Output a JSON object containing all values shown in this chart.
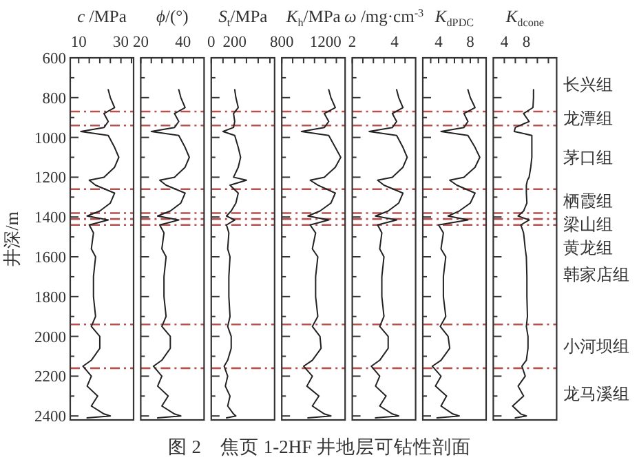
{
  "chart_data": [
    {
      "type": "line",
      "xlabel": "*c* /MPa",
      "ylabel": "井深/m",
      "xlim": [
        6,
        36
      ],
      "xticks": [
        10,
        {
          "value": 15,
          "label": null
        },
        {
          "value": 20,
          "label": null
        },
        {
          "value": 25,
          "label": null
        },
        30,
        {
          "value": 35,
          "label": null
        }
      ],
      "ylim": [
        2420,
        600
      ],
      "yticks": [
        600,
        {
          "value": 700,
          "label": null
        },
        800,
        {
          "value": 900,
          "label": null
        },
        1000,
        {
          "value": 1100,
          "label": null
        },
        1200,
        {
          "value": 1300,
          "label": null
        },
        1400,
        {
          "value": 1500,
          "label": null
        },
        1600,
        {
          "value": 1700,
          "label": null
        },
        1800,
        {
          "value": 1900,
          "label": null
        },
        2000,
        {
          "value": 2100,
          "label": null
        },
        2200,
        {
          "value": 2300,
          "label": null
        },
        2400
      ],
      "series": [
        {
          "color": "#222222",
          "x": [
            24,
            25,
            27,
            22,
            24,
            22,
            11,
            24,
            27,
            29,
            27,
            22,
            15,
            18,
            27,
            25,
            20,
            14,
            24,
            15,
            17,
            16,
            18,
            17,
            17,
            18,
            16,
            20,
            20,
            16,
            12,
            16,
            14,
            19,
            16,
            22,
            25,
            14
          ],
          "values": [
            760,
            800,
            850,
            880,
            920,
            950,
            970,
            990,
            1050,
            1100,
            1150,
            1200,
            1215,
            1240,
            1280,
            1330,
            1370,
            1395,
            1415,
            1440,
            1480,
            1560,
            1600,
            1700,
            1800,
            1900,
            1950,
            2000,
            2060,
            2120,
            2150,
            2200,
            2250,
            2300,
            2350,
            2390,
            2400,
            2410
          ]
        }
      ],
      "ref_lines": [
        {
          "axis": "y",
          "value": 870,
          "color": "#b5524f",
          "line_style": "dashdot"
        },
        {
          "axis": "y",
          "value": 940,
          "color": "#b5524f",
          "line_style": "dashdot"
        },
        {
          "axis": "y",
          "value": 1260,
          "color": "#b5524f",
          "line_style": "dashdot"
        },
        {
          "axis": "y",
          "value": 1380,
          "color": "#b5524f",
          "line_style": "dashdot"
        },
        {
          "axis": "y",
          "value": 1410,
          "color": "#b5524f",
          "line_style": "dashdot"
        },
        {
          "axis": "y",
          "value": 1440,
          "color": "#b5524f",
          "line_style": "dashdot"
        },
        {
          "axis": "y",
          "value": 1940,
          "color": "#b5524f",
          "line_style": "dashdot"
        },
        {
          "axis": "y",
          "value": 2160,
          "color": "#b5524f",
          "line_style": "dashdot"
        }
      ],
      "annotations": [
        "图 2　焦页 1-2HF 井地层可钻性剖面"
      ]
    },
    {
      "type": "line",
      "xlabel": "*ϕ*/(°)",
      "xlim": [
        20,
        50
      ],
      "xticks": [
        20,
        {
          "value": 25,
          "label": null
        },
        {
          "value": 30,
          "label": null
        },
        {
          "value": 35,
          "label": null
        },
        40,
        {
          "value": 45,
          "label": null
        }
      ],
      "ylim": [
        2420,
        600
      ],
      "yticks": [
        600,
        {
          "value": 700,
          "label": null
        },
        800,
        {
          "value": 900,
          "label": null
        },
        1000,
        {
          "value": 1100,
          "label": null
        },
        1200,
        {
          "value": 1300,
          "label": null
        },
        1400,
        {
          "value": 1500,
          "label": null
        },
        1600,
        {
          "value": 1700,
          "label": null
        },
        1800,
        {
          "value": 1900,
          "label": null
        },
        2000,
        {
          "value": 2100,
          "label": null
        },
        2200,
        {
          "value": 2300,
          "label": null
        },
        2400
      ],
      "tick_labels": "x",
      "series": [
        {
          "color": "#222222",
          "x": [
            38,
            39,
            41,
            36,
            38,
            36,
            25,
            38,
            41,
            43,
            41,
            36,
            29,
            32,
            41,
            39,
            34,
            28,
            38,
            29,
            31,
            30,
            32,
            31,
            31,
            32,
            30,
            34,
            34,
            30,
            26,
            30,
            28,
            33,
            30,
            36,
            39,
            28
          ],
          "values": [
            760,
            800,
            850,
            880,
            920,
            950,
            970,
            990,
            1050,
            1100,
            1150,
            1200,
            1215,
            1240,
            1280,
            1330,
            1370,
            1395,
            1415,
            1440,
            1480,
            1560,
            1600,
            1700,
            1800,
            1900,
            1950,
            2000,
            2060,
            2120,
            2150,
            2200,
            2250,
            2300,
            2350,
            2390,
            2400,
            2410
          ]
        }
      ],
      "ref_lines": [
        {
          "axis": "y",
          "value": 870,
          "color": "#b5524f",
          "line_style": "dashdot"
        },
        {
          "axis": "y",
          "value": 940,
          "color": "#b5524f",
          "line_style": "dashdot"
        },
        {
          "axis": "y",
          "value": 1260,
          "color": "#b5524f",
          "line_style": "dashdot"
        },
        {
          "axis": "y",
          "value": 1380,
          "color": "#b5524f",
          "line_style": "dashdot"
        },
        {
          "axis": "y",
          "value": 1410,
          "color": "#b5524f",
          "line_style": "dashdot"
        },
        {
          "axis": "y",
          "value": 1440,
          "color": "#b5524f",
          "line_style": "dashdot"
        },
        {
          "axis": "y",
          "value": 1940,
          "color": "#b5524f",
          "line_style": "dashdot"
        },
        {
          "axis": "y",
          "value": 2160,
          "color": "#b5524f",
          "line_style": "dashdot"
        }
      ]
    },
    {
      "type": "line",
      "xlabel": "*S*$_{t}$/MPa",
      "xlim": [
        0,
        540
      ],
      "xticks": [
        0,
        {
          "value": 100,
          "label": null
        },
        200,
        {
          "value": 300,
          "label": null
        },
        {
          "value": 400,
          "label": null
        },
        {
          "value": 500,
          "label": null
        }
      ],
      "ylim": [
        2420,
        600
      ],
      "yticks": [
        600,
        {
          "value": 700,
          "label": null
        },
        800,
        {
          "value": 900,
          "label": null
        },
        1000,
        {
          "value": 1100,
          "label": null
        },
        1200,
        {
          "value": 1300,
          "label": null
        },
        1400,
        {
          "value": 1500,
          "label": null
        },
        1600,
        {
          "value": 1700,
          "label": null
        },
        1800,
        {
          "value": 1900,
          "label": null
        },
        2000,
        {
          "value": 2100,
          "label": null
        },
        2200,
        {
          "value": 2300,
          "label": null
        },
        2400
      ],
      "tick_labels": "x",
      "series": [
        {
          "color": "#222222",
          "x": [
            200,
            210,
            230,
            190,
            200,
            190,
            100,
            200,
            230,
            250,
            230,
            190,
            300,
            160,
            230,
            210,
            170,
            130,
            200,
            130,
            150,
            140,
            160,
            150,
            150,
            160,
            140,
            170,
            170,
            140,
            110,
            140,
            120,
            160,
            140,
            190,
            210,
            130
          ],
          "values": [
            760,
            800,
            850,
            880,
            920,
            950,
            970,
            990,
            1050,
            1100,
            1150,
            1200,
            1215,
            1240,
            1280,
            1330,
            1370,
            1395,
            1415,
            1440,
            1480,
            1560,
            1600,
            1700,
            1800,
            1900,
            1950,
            2000,
            2060,
            2120,
            2150,
            2200,
            2250,
            2300,
            2350,
            2390,
            2400,
            2410
          ]
        }
      ],
      "ref_lines": [
        {
          "axis": "y",
          "value": 870,
          "color": "#b5524f",
          "line_style": "dashdot"
        },
        {
          "axis": "y",
          "value": 940,
          "color": "#b5524f",
          "line_style": "dashdot"
        },
        {
          "axis": "y",
          "value": 1260,
          "color": "#b5524f",
          "line_style": "dashdot"
        },
        {
          "axis": "y",
          "value": 1380,
          "color": "#b5524f",
          "line_style": "dashdot"
        },
        {
          "axis": "y",
          "value": 1410,
          "color": "#b5524f",
          "line_style": "dashdot"
        },
        {
          "axis": "y",
          "value": 1440,
          "color": "#b5524f",
          "line_style": "dashdot"
        },
        {
          "axis": "y",
          "value": 1940,
          "color": "#b5524f",
          "line_style": "dashdot"
        },
        {
          "axis": "y",
          "value": 2160,
          "color": "#b5524f",
          "line_style": "dashdot"
        }
      ]
    },
    {
      "type": "line",
      "xlabel": "*K*$_{h}$/MPa",
      "xlim": [
        800,
        1380
      ],
      "xticks": [
        800,
        {
          "value": 900,
          "label": null
        },
        {
          "value": 1000,
          "label": null
        },
        {
          "value": 1100,
          "label": null
        },
        1200,
        {
          "value": 1300,
          "label": null
        }
      ],
      "ylim": [
        2420,
        600
      ],
      "yticks": [
        600,
        {
          "value": 700,
          "label": null
        },
        800,
        {
          "value": 900,
          "label": null
        },
        1000,
        {
          "value": 1100,
          "label": null
        },
        1200,
        {
          "value": 1300,
          "label": null
        },
        1400,
        {
          "value": 1500,
          "label": null
        },
        1600,
        {
          "value": 1700,
          "label": null
        },
        1800,
        {
          "value": 1900,
          "label": null
        },
        2000,
        {
          "value": 2100,
          "label": null
        },
        2200,
        {
          "value": 2300,
          "label": null
        },
        2400
      ],
      "tick_labels": "x",
      "series": [
        {
          "color": "#222222",
          "x": [
            1230,
            1250,
            1290,
            1190,
            1230,
            1190,
            980,
            1230,
            1290,
            1340,
            1290,
            1190,
            1060,
            1130,
            1290,
            1250,
            1150,
            1040,
            1230,
            1060,
            1110,
            1080,
            1130,
            1110,
            1110,
            1130,
            1080,
            1150,
            1160,
            1080,
            1000,
            1080,
            1030,
            1140,
            1080,
            1190,
            1250,
            1040
          ],
          "values": [
            760,
            800,
            850,
            880,
            920,
            950,
            970,
            990,
            1050,
            1100,
            1150,
            1200,
            1215,
            1240,
            1280,
            1330,
            1370,
            1395,
            1415,
            1440,
            1480,
            1560,
            1600,
            1700,
            1800,
            1900,
            1950,
            2000,
            2060,
            2120,
            2150,
            2200,
            2250,
            2300,
            2350,
            2390,
            2400,
            2410
          ]
        }
      ],
      "ref_lines": [
        {
          "axis": "y",
          "value": 870,
          "color": "#b5524f",
          "line_style": "dashdot"
        },
        {
          "axis": "y",
          "value": 940,
          "color": "#b5524f",
          "line_style": "dashdot"
        },
        {
          "axis": "y",
          "value": 1260,
          "color": "#b5524f",
          "line_style": "dashdot"
        },
        {
          "axis": "y",
          "value": 1380,
          "color": "#b5524f",
          "line_style": "dashdot"
        },
        {
          "axis": "y",
          "value": 1410,
          "color": "#b5524f",
          "line_style": "dashdot"
        },
        {
          "axis": "y",
          "value": 1440,
          "color": "#b5524f",
          "line_style": "dashdot"
        },
        {
          "axis": "y",
          "value": 1940,
          "color": "#b5524f",
          "line_style": "dashdot"
        },
        {
          "axis": "y",
          "value": 2160,
          "color": "#b5524f",
          "line_style": "dashdot"
        }
      ]
    },
    {
      "type": "line",
      "xlabel": "*ω* /mg·cm$^{-3}$",
      "xlim": [
        2,
        5
      ],
      "xticks": [
        2,
        {
          "value": 2.5,
          "label": null
        },
        {
          "value": 3,
          "label": null
        },
        {
          "value": 3.5,
          "label": null
        },
        4,
        {
          "value": 4.5,
          "label": null
        }
      ],
      "ylim": [
        2420,
        600
      ],
      "yticks": [
        600,
        {
          "value": 700,
          "label": null
        },
        800,
        {
          "value": 900,
          "label": null
        },
        1000,
        {
          "value": 1100,
          "label": null
        },
        1200,
        {
          "value": 1300,
          "label": null
        },
        1400,
        {
          "value": 1500,
          "label": null
        },
        1600,
        {
          "value": 1700,
          "label": null
        },
        1800,
        {
          "value": 1900,
          "label": null
        },
        2000,
        {
          "value": 2100,
          "label": null
        },
        2200,
        {
          "value": 2300,
          "label": null
        },
        2400
      ],
      "tick_labels": "x",
      "series": [
        {
          "color": "#222222",
          "x": [
            4.1,
            4.2,
            4.4,
            3.9,
            4.1,
            3.9,
            2.8,
            4.1,
            4.4,
            4.6,
            4.4,
            3.9,
            3.2,
            3.5,
            4.4,
            4.2,
            3.7,
            3.1,
            4.1,
            3.2,
            3.4,
            3.3,
            3.5,
            3.4,
            3.4,
            3.5,
            3.3,
            3.7,
            3.7,
            3.3,
            2.9,
            3.3,
            3.1,
            3.6,
            3.3,
            3.9,
            4.2,
            3.1
          ],
          "values": [
            760,
            800,
            850,
            880,
            920,
            950,
            970,
            990,
            1050,
            1100,
            1150,
            1200,
            1215,
            1240,
            1280,
            1330,
            1370,
            1395,
            1415,
            1440,
            1480,
            1560,
            1600,
            1700,
            1800,
            1900,
            1950,
            2000,
            2060,
            2120,
            2150,
            2200,
            2250,
            2300,
            2350,
            2390,
            2400,
            2410
          ]
        }
      ],
      "ref_lines": [
        {
          "axis": "y",
          "value": 870,
          "color": "#b5524f",
          "line_style": "dashdot"
        },
        {
          "axis": "y",
          "value": 940,
          "color": "#b5524f",
          "line_style": "dashdot"
        },
        {
          "axis": "y",
          "value": 1260,
          "color": "#b5524f",
          "line_style": "dashdot"
        },
        {
          "axis": "y",
          "value": 1380,
          "color": "#b5524f",
          "line_style": "dashdot"
        },
        {
          "axis": "y",
          "value": 1410,
          "color": "#b5524f",
          "line_style": "dashdot"
        },
        {
          "axis": "y",
          "value": 1440,
          "color": "#b5524f",
          "line_style": "dashdot"
        },
        {
          "axis": "y",
          "value": 1940,
          "color": "#b5524f",
          "line_style": "dashdot"
        },
        {
          "axis": "y",
          "value": 2160,
          "color": "#b5524f",
          "line_style": "dashdot"
        }
      ]
    },
    {
      "type": "line",
      "xlabel": "*K*$_{dPDC}$",
      "xlim": [
        2,
        10
      ],
      "xticks": [
        {
          "value": 3,
          "label": null
        },
        4,
        {
          "value": 5,
          "label": null
        },
        {
          "value": 6,
          "label": null
        },
        {
          "value": 7,
          "label": null
        },
        8,
        {
          "value": 9,
          "label": null
        }
      ],
      "ylim": [
        2420,
        600
      ],
      "yticks": [
        600,
        {
          "value": 700,
          "label": null
        },
        800,
        {
          "value": 900,
          "label": null
        },
        1000,
        {
          "value": 1100,
          "label": null
        },
        1200,
        {
          "value": 1300,
          "label": null
        },
        1400,
        {
          "value": 1500,
          "label": null
        },
        1600,
        {
          "value": 1700,
          "label": null
        },
        1800,
        {
          "value": 1900,
          "label": null
        },
        2000,
        {
          "value": 2100,
          "label": null
        },
        2200,
        {
          "value": 2300,
          "label": null
        },
        2400
      ],
      "tick_labels": "x",
      "series": [
        {
          "color": "#222222",
          "x": [
            7.7,
            8.0,
            8.6,
            7.2,
            7.7,
            7.2,
            4.3,
            7.7,
            8.6,
            9.2,
            8.6,
            7.2,
            5.4,
            6.3,
            8.6,
            8.0,
            6.6,
            5.2,
            7.7,
            4.0,
            4.6,
            4.3,
            4.9,
            4.6,
            4.6,
            4.9,
            4.2,
            5.2,
            5.4,
            4.3,
            3.2,
            4.3,
            3.6,
            5.0,
            4.3,
            5.8,
            6.6,
            3.8
          ],
          "values": [
            760,
            800,
            850,
            880,
            920,
            950,
            970,
            990,
            1050,
            1100,
            1150,
            1200,
            1215,
            1240,
            1280,
            1330,
            1370,
            1395,
            1415,
            1440,
            1480,
            1560,
            1600,
            1700,
            1800,
            1900,
            1950,
            2000,
            2060,
            2120,
            2150,
            2200,
            2250,
            2300,
            2350,
            2390,
            2400,
            2410
          ]
        }
      ],
      "ref_lines": [
        {
          "axis": "y",
          "value": 870,
          "color": "#b5524f",
          "line_style": "dashdot"
        },
        {
          "axis": "y",
          "value": 940,
          "color": "#b5524f",
          "line_style": "dashdot"
        },
        {
          "axis": "y",
          "value": 1260,
          "color": "#b5524f",
          "line_style": "dashdot"
        },
        {
          "axis": "y",
          "value": 1380,
          "color": "#b5524f",
          "line_style": "dashdot"
        },
        {
          "axis": "y",
          "value": 1410,
          "color": "#b5524f",
          "line_style": "dashdot"
        },
        {
          "axis": "y",
          "value": 1440,
          "color": "#b5524f",
          "line_style": "dashdot"
        },
        {
          "axis": "y",
          "value": 1940,
          "color": "#b5524f",
          "line_style": "dashdot"
        },
        {
          "axis": "y",
          "value": 2160,
          "color": "#b5524f",
          "line_style": "dashdot"
        }
      ]
    },
    {
      "type": "line",
      "xlabel": "*K*$_{dcone}$",
      "xlim": [
        2,
        13.5
      ],
      "xticks": [
        4,
        {
          "value": 6,
          "label": null
        },
        8,
        {
          "value": 10,
          "label": null
        },
        {
          "value": 12,
          "label": null
        }
      ],
      "ylim": [
        2420,
        600
      ],
      "yticks": [
        600,
        {
          "value": 700,
          "label": null
        },
        800,
        {
          "value": 900,
          "label": null
        },
        1000,
        {
          "value": 1100,
          "label": null
        },
        1200,
        {
          "value": 1300,
          "label": null
        },
        1400,
        {
          "value": 1500,
          "label": null
        },
        1600,
        {
          "value": 1700,
          "label": null
        },
        1800,
        {
          "value": 1900,
          "label": null
        },
        2000,
        {
          "value": 2100,
          "label": null
        },
        2200,
        {
          "value": 2300,
          "label": null
        },
        2400
      ],
      "tick_labels": "x",
      "series": [
        {
          "color": "#222222",
          "x": [
            9.3,
            9.3,
            9.2,
            7.5,
            8.5,
            6.0,
            5.8,
            9.0,
            9.0,
            9.0,
            8.8,
            8.5,
            8.2,
            8.0,
            8.0,
            8.1,
            7.5,
            6.5,
            8.5,
            7.0,
            7.5,
            7.8,
            8.0,
            8.1,
            8.1,
            8.2,
            8.0,
            8.3,
            8.3,
            8.0,
            7.2,
            7.8,
            6.5,
            7.5,
            5.5,
            7.0,
            8.0,
            6.0
          ],
          "values": [
            760,
            800,
            850,
            880,
            920,
            950,
            970,
            990,
            1050,
            1100,
            1150,
            1200,
            1215,
            1240,
            1280,
            1330,
            1370,
            1395,
            1415,
            1440,
            1480,
            1560,
            1600,
            1700,
            1800,
            1900,
            1950,
            2000,
            2060,
            2120,
            2150,
            2200,
            2250,
            2300,
            2350,
            2390,
            2400,
            2410
          ]
        }
      ],
      "ref_lines": [
        {
          "axis": "y",
          "value": 870,
          "color": "#b5524f",
          "line_style": "dashdot"
        },
        {
          "axis": "y",
          "value": 940,
          "color": "#b5524f",
          "line_style": "dashdot"
        },
        {
          "axis": "y",
          "value": 1260,
          "color": "#b5524f",
          "line_style": "dashdot"
        },
        {
          "axis": "y",
          "value": 1380,
          "color": "#b5524f",
          "line_style": "dashdot"
        },
        {
          "axis": "y",
          "value": 1410,
          "color": "#b5524f",
          "line_style": "dashdot"
        },
        {
          "axis": "y",
          "value": 1440,
          "color": "#b5524f",
          "line_style": "dashdot"
        },
        {
          "axis": "y",
          "value": 1940,
          "color": "#b5524f",
          "line_style": "dashdot"
        },
        {
          "axis": "y",
          "value": 2160,
          "color": "#b5524f",
          "line_style": "dashdot"
        }
      ],
      "annotations": [
        "长兴组",
        "龙潭组",
        "茅口组",
        "栖霞组",
        "梁山组",
        "黄龙组",
        "韩家店组",
        "小河坝组",
        "龙马溪组"
      ]
    }
  ]
}
